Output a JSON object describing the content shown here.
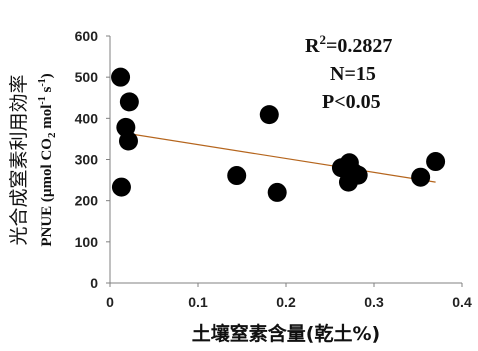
{
  "chart_data": {
    "type": "scatter",
    "xlabel": "土壤窒素含量(乾土%)",
    "ylabel_line1": "光合成窒素利用効率",
    "ylabel_line2": {
      "prefix": "PNUE (µmol CO",
      "sub": "2",
      "middle": " mol",
      "sup": "-1",
      "space": " s",
      "sup2": "-1",
      "suffix": ")"
    },
    "xlim": [
      0,
      0.4
    ],
    "ylim": [
      0,
      600
    ],
    "x_ticks": [
      "0",
      "0.1",
      "0.2",
      "0.3",
      "0.4"
    ],
    "x_tick_values": [
      0,
      0.1,
      0.2,
      0.3,
      0.4
    ],
    "y_ticks": [
      "0",
      "100",
      "200",
      "300",
      "400",
      "500",
      "600"
    ],
    "y_tick_values": [
      0,
      100,
      200,
      300,
      400,
      500,
      600
    ],
    "grid": false,
    "points": [
      {
        "x": 0.012,
        "y": 500
      },
      {
        "x": 0.022,
        "y": 440
      },
      {
        "x": 0.018,
        "y": 378
      },
      {
        "x": 0.021,
        "y": 345
      },
      {
        "x": 0.013,
        "y": 233
      },
      {
        "x": 0.144,
        "y": 261
      },
      {
        "x": 0.181,
        "y": 409
      },
      {
        "x": 0.19,
        "y": 220
      },
      {
        "x": 0.263,
        "y": 280
      },
      {
        "x": 0.272,
        "y": 292
      },
      {
        "x": 0.277,
        "y": 268
      },
      {
        "x": 0.271,
        "y": 245
      },
      {
        "x": 0.282,
        "y": 262
      },
      {
        "x": 0.353,
        "y": 257
      },
      {
        "x": 0.37,
        "y": 295
      }
    ],
    "trendline": {
      "x": [
        0.015,
        0.37
      ],
      "y": [
        365,
        245
      ],
      "color": "#b5651d"
    },
    "annotations": {
      "r2_prefix": "R",
      "r2_sup": "2",
      "r2_value": "=0.2827",
      "n": "N=15",
      "p": "P<0.05"
    },
    "colors": {
      "point": "#000000",
      "axis": "#808080",
      "trend": "#b5651d"
    }
  }
}
